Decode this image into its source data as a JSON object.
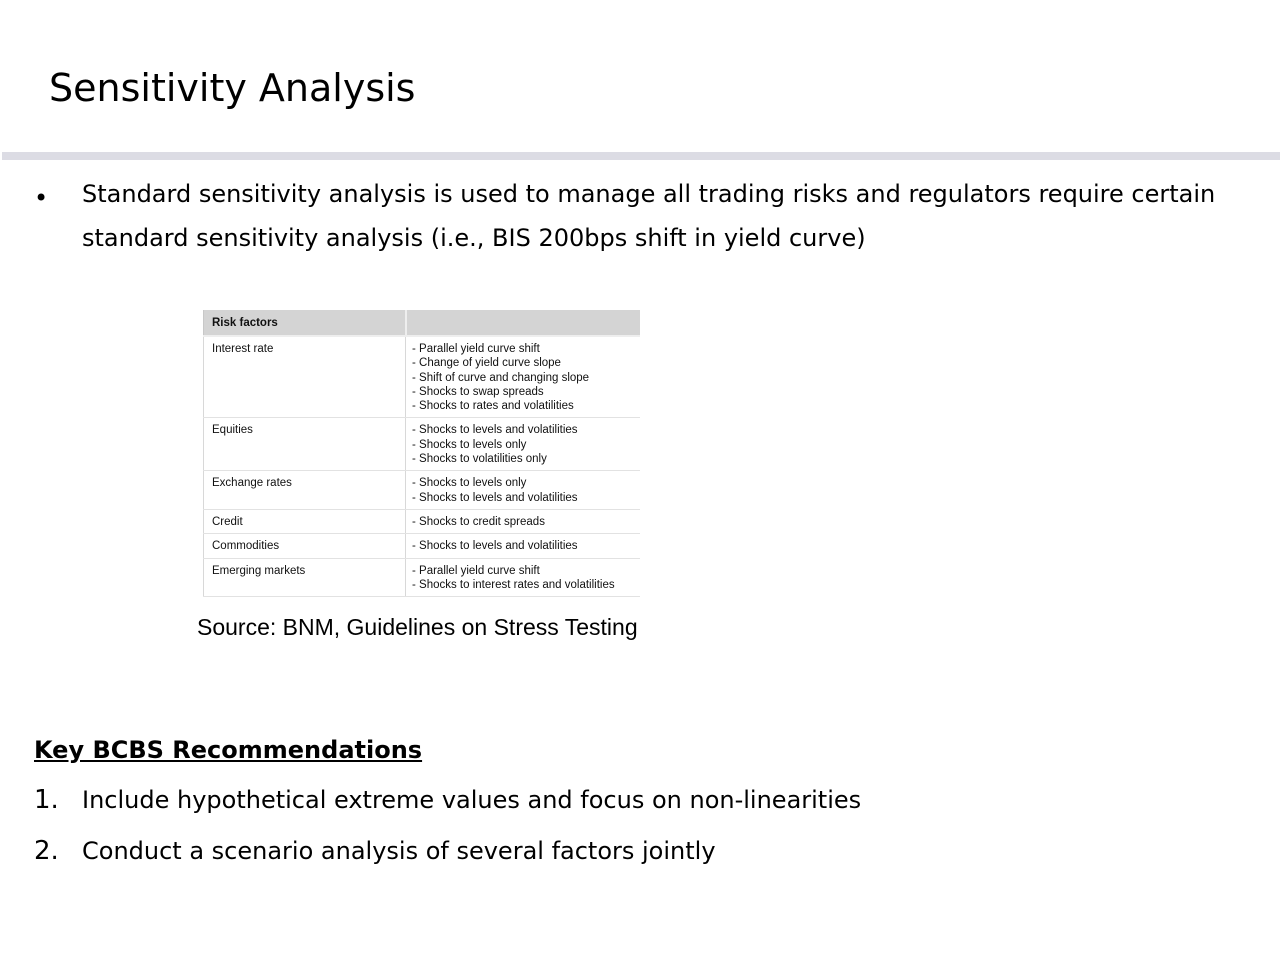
{
  "slide": {
    "title": "Sensitivity Analysis",
    "bullet_marker": "•",
    "bullet_text": "Standard sensitivity analysis is used to manage all trading risks and regulators require certain standard sensitivity analysis (i.e., BIS 200bps shift in yield curve)"
  },
  "risk_table": {
    "headers": [
      "Risk factors",
      ""
    ],
    "rows": [
      {
        "factor": "Interest rate",
        "shocks": [
          "- Parallel yield curve shift",
          "- Change of yield curve slope",
          "- Shift of curve and changing slope",
          "- Shocks to swap spreads",
          "- Shocks to rates and volatilities"
        ]
      },
      {
        "factor": "Equities",
        "shocks": [
          "- Shocks to levels and volatilities",
          "- Shocks to levels only",
          "- Shocks to volatilities only"
        ]
      },
      {
        "factor": "Exchange rates",
        "shocks": [
          "- Shocks to levels only",
          "- Shocks to levels and volatilities"
        ]
      },
      {
        "factor": "Credit",
        "shocks": [
          "- Shocks to credit spreads"
        ]
      },
      {
        "factor": "Commodities",
        "shocks": [
          "- Shocks to levels and volatilities"
        ]
      },
      {
        "factor": "Emerging markets",
        "shocks": [
          "- Parallel yield curve shift",
          "- Shocks to interest rates and volatilities"
        ]
      }
    ],
    "source": "Source: BNM, Guidelines on Stress Testing"
  },
  "recommendations": {
    "heading": "Key BCBS Recommendations",
    "items": [
      {
        "number": "1.",
        "text": "Include hypothetical extreme values and focus on non-linearities"
      },
      {
        "number": "2.",
        "text": "Conduct a scenario analysis of several factors jointly"
      }
    ]
  }
}
